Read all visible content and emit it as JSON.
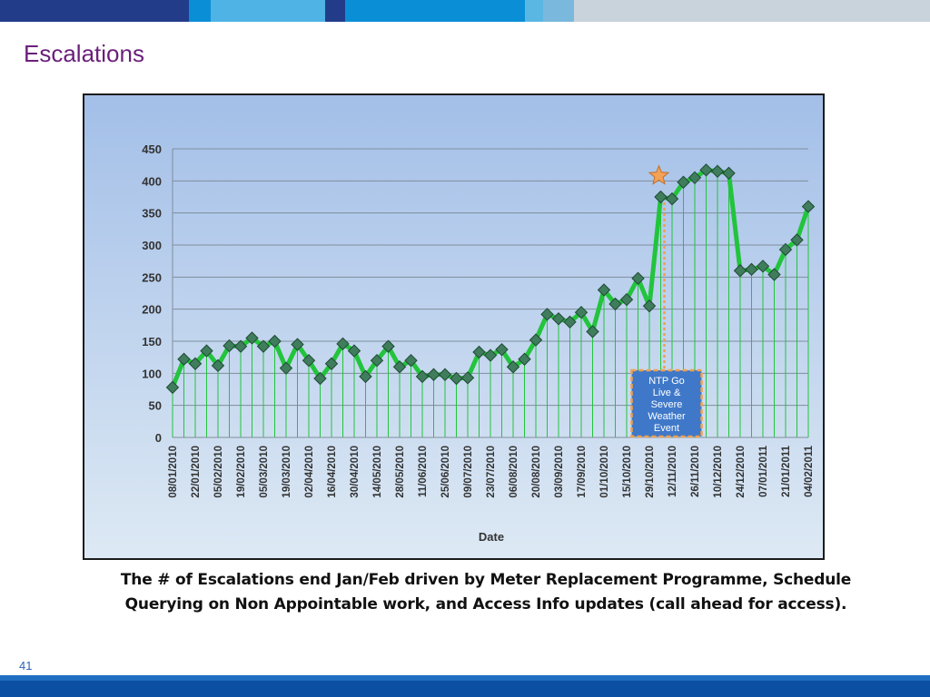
{
  "slide": {
    "title": "Escalations",
    "caption": "The # of Escalations end Jan/Feb driven by Meter Replacement Programme, Schedule Querying on Non Appointable work, and Access Info updates (call ahead for access).",
    "page_number": "41"
  },
  "colors": {
    "title": "#6b1f7b",
    "line": "#22c43c",
    "marker": "#3f7d5c",
    "plot_background": "#a9c4ea",
    "annotation_box": "#3f78c8",
    "annotation_border": "#f0a050",
    "star": "#f4a256",
    "band_dark": "#233c8a",
    "band_mid": "#0a8fd6",
    "band_light": "#7ab8dd",
    "band_pale": "#c9d3dc"
  },
  "chart_data": {
    "type": "line",
    "title": "",
    "xlabel": "Date",
    "ylabel": "",
    "ylim": [
      0,
      450
    ],
    "yticks": [
      0,
      50,
      100,
      150,
      200,
      250,
      300,
      350,
      400,
      450
    ],
    "grid": true,
    "tick_labels": [
      "08/01/2010",
      "22/01/2010",
      "05/02/2010",
      "19/02/2010",
      "05/03/2010",
      "19/03/2010",
      "02/04/2010",
      "16/04/2010",
      "30/04/2010",
      "14/05/2010",
      "28/05/2010",
      "11/06/2010",
      "25/06/2010",
      "09/07/2010",
      "23/07/2010",
      "06/08/2010",
      "20/08/2010",
      "03/09/2010",
      "17/09/2010",
      "01/10/2010",
      "15/10/2010",
      "29/10/2010",
      "12/11/2010",
      "26/11/2010",
      "10/12/2010",
      "24/12/2010",
      "07/01/2011",
      "21/01/2011",
      "04/02/2011"
    ],
    "values": [
      78,
      122,
      115,
      135,
      112,
      143,
      142,
      155,
      142,
      150,
      108,
      145,
      120,
      92,
      115,
      146,
      135,
      95,
      120,
      142,
      110,
      120,
      95,
      98,
      98,
      92,
      93,
      133,
      128,
      137,
      110,
      122,
      152,
      192,
      185,
      180,
      195,
      165,
      230,
      208,
      215,
      248,
      205,
      375,
      372,
      398,
      405,
      417,
      415,
      412,
      260,
      262,
      267,
      254,
      293,
      308,
      360
    ],
    "annotations": [
      {
        "type": "text_box",
        "text_lines": [
          "NTP Go",
          "Live &",
          "Severe",
          "Weather",
          "Event"
        ],
        "at_index": 43
      },
      {
        "type": "star",
        "at_index": 43,
        "value": 408
      }
    ]
  }
}
